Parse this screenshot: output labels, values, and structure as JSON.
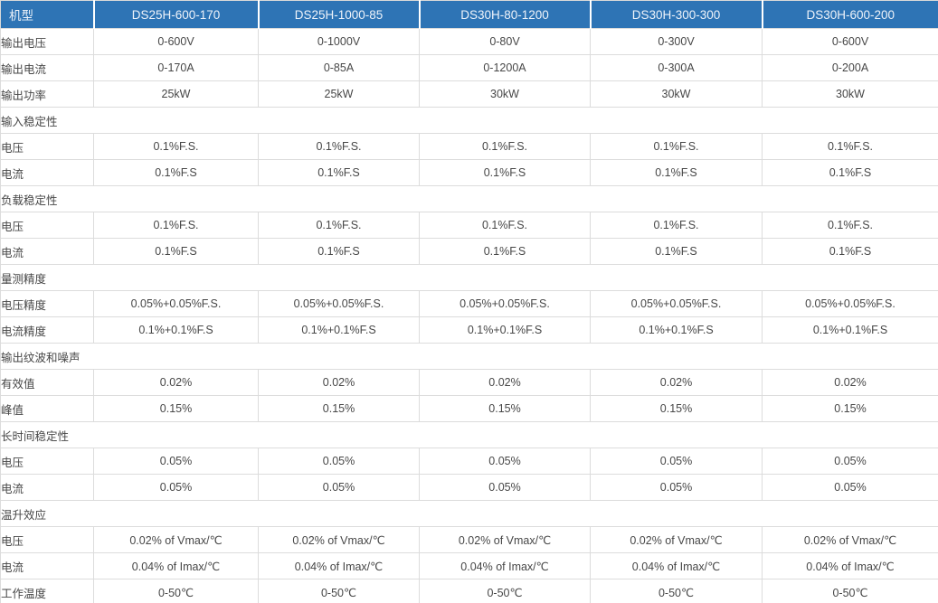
{
  "table": {
    "header": {
      "label": "机型",
      "models": [
        "DS25H-600-170",
        "DS25H-1000-85",
        "DS30H-80-1200",
        "DS30H-300-300",
        "DS30H-600-200"
      ]
    },
    "rows": [
      {
        "type": "data",
        "label": "输出电压",
        "values": [
          "0-600V",
          "0-1000V",
          "0-80V",
          "0-300V",
          "0-600V"
        ]
      },
      {
        "type": "data",
        "label": "输出电流",
        "values": [
          "0-170A",
          "0-85A",
          "0-1200A",
          "0-300A",
          "0-200A"
        ]
      },
      {
        "type": "data",
        "label": "输出功率",
        "values": [
          "25kW",
          "25kW",
          "30kW",
          "30kW",
          "30kW"
        ]
      },
      {
        "type": "section",
        "label": "输入稳定性"
      },
      {
        "type": "data",
        "label": "电压",
        "values": [
          "0.1%F.S.",
          "0.1%F.S.",
          "0.1%F.S.",
          "0.1%F.S.",
          "0.1%F.S."
        ]
      },
      {
        "type": "data",
        "label": "电流",
        "values": [
          "0.1%F.S",
          "0.1%F.S",
          "0.1%F.S",
          "0.1%F.S",
          "0.1%F.S"
        ]
      },
      {
        "type": "section",
        "label": "负载稳定性"
      },
      {
        "type": "data",
        "label": "电压",
        "values": [
          "0.1%F.S.",
          "0.1%F.S.",
          "0.1%F.S.",
          "0.1%F.S.",
          "0.1%F.S."
        ]
      },
      {
        "type": "data",
        "label": "电流",
        "values": [
          "0.1%F.S",
          "0.1%F.S",
          "0.1%F.S",
          "0.1%F.S",
          "0.1%F.S"
        ]
      },
      {
        "type": "section",
        "label": "量测精度"
      },
      {
        "type": "data",
        "label": "电压精度",
        "values": [
          "0.05%+0.05%F.S.",
          "0.05%+0.05%F.S.",
          "0.05%+0.05%F.S.",
          "0.05%+0.05%F.S.",
          "0.05%+0.05%F.S."
        ]
      },
      {
        "type": "data",
        "label": "电流精度",
        "values": [
          "0.1%+0.1%F.S",
          "0.1%+0.1%F.S",
          "0.1%+0.1%F.S",
          "0.1%+0.1%F.S",
          "0.1%+0.1%F.S"
        ]
      },
      {
        "type": "section",
        "label": "输出纹波和噪声"
      },
      {
        "type": "data",
        "label": "有效值",
        "values": [
          "0.02%",
          "0.02%",
          "0.02%",
          "0.02%",
          "0.02%"
        ]
      },
      {
        "type": "data",
        "label": "峰值",
        "values": [
          "0.15%",
          "0.15%",
          "0.15%",
          "0.15%",
          "0.15%"
        ]
      },
      {
        "type": "section",
        "label": "长时间稳定性"
      },
      {
        "type": "data",
        "label": "电压",
        "values": [
          "0.05%",
          "0.05%",
          "0.05%",
          "0.05%",
          "0.05%"
        ]
      },
      {
        "type": "data",
        "label": "电流",
        "values": [
          "0.05%",
          "0.05%",
          "0.05%",
          "0.05%",
          "0.05%"
        ]
      },
      {
        "type": "section",
        "label": "温升效应"
      },
      {
        "type": "data",
        "label": "电压",
        "values": [
          "0.02% of Vmax/℃",
          "0.02% of Vmax/℃",
          "0.02% of Vmax/℃",
          "0.02% of Vmax/℃",
          "0.02% of Vmax/℃"
        ]
      },
      {
        "type": "data",
        "label": "电流",
        "values": [
          "0.04% of Imax/℃",
          "0.04% of Imax/℃",
          "0.04% of Imax/℃",
          "0.04% of Imax/℃",
          "0.04% of Imax/℃"
        ]
      },
      {
        "type": "data",
        "label": "工作温度",
        "values": [
          "0-50℃",
          "0-50℃",
          "0-50℃",
          "0-50℃",
          "0-50℃"
        ]
      }
    ],
    "colors": {
      "header_bg": "#2e74b5",
      "header_text": "#eef3fa",
      "border": "#dcdcdc",
      "body_text": "#474747"
    }
  }
}
